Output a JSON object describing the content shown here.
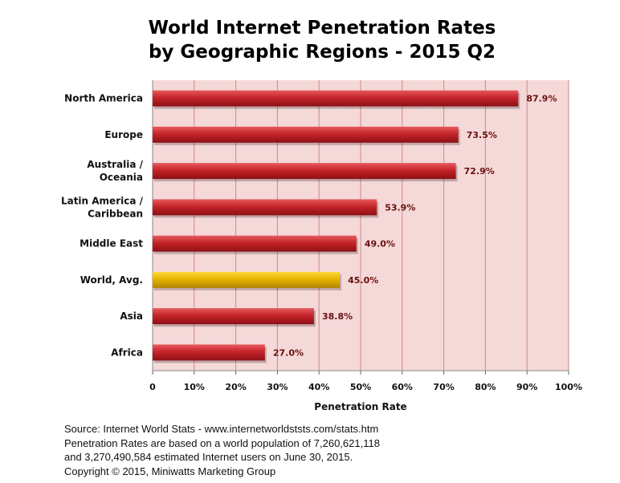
{
  "chart_data": {
    "type": "bar",
    "orientation": "horizontal",
    "title": "World Internet Penetration Rates",
    "subtitle": "by Geographic Regions - 2015 Q2",
    "xlabel": "Penetration Rate",
    "ylabel": "",
    "xlim": [
      0,
      100
    ],
    "grid": true,
    "categories": [
      [
        "North America"
      ],
      [
        "Europe"
      ],
      [
        "Australia /",
        "Oceania"
      ],
      [
        "Latin America /",
        "Caribbean"
      ],
      [
        "Middle East"
      ],
      [
        "World, Avg."
      ],
      [
        "Asia"
      ],
      [
        "Africa"
      ]
    ],
    "values": [
      87.9,
      73.5,
      72.9,
      53.9,
      49.0,
      45.0,
      38.8,
      27.0
    ],
    "value_labels": [
      "87.9%",
      "73.5%",
      "72.9%",
      "53.9%",
      "49.0%",
      "45.0%",
      "38.8%",
      "27.0%"
    ],
    "highlight_index": 5,
    "ticks": [
      0,
      10,
      20,
      30,
      40,
      50,
      60,
      70,
      80,
      90,
      100
    ],
    "tick_labels": [
      "0",
      "10%",
      "20%",
      "30%",
      "40%",
      "50%",
      "60%",
      "70%",
      "80%",
      "90%",
      "100%"
    ],
    "colors": {
      "bar": "#c4242a",
      "highlight": "#e6b300",
      "plot_bg": "#f5d8d8",
      "grid": "#cc8a8a"
    }
  },
  "source": {
    "line1": "Source: Internet World Stats - www.internetworldststs.com/stats.htm",
    "line2": "Penetration Rates are based on a world population of 7,260,621,118",
    "line3": "and 3,270,490,584 estimated Internet users on June 30, 2015.",
    "line4": "Copyright © 2015, Miniwatts Marketing Group"
  }
}
